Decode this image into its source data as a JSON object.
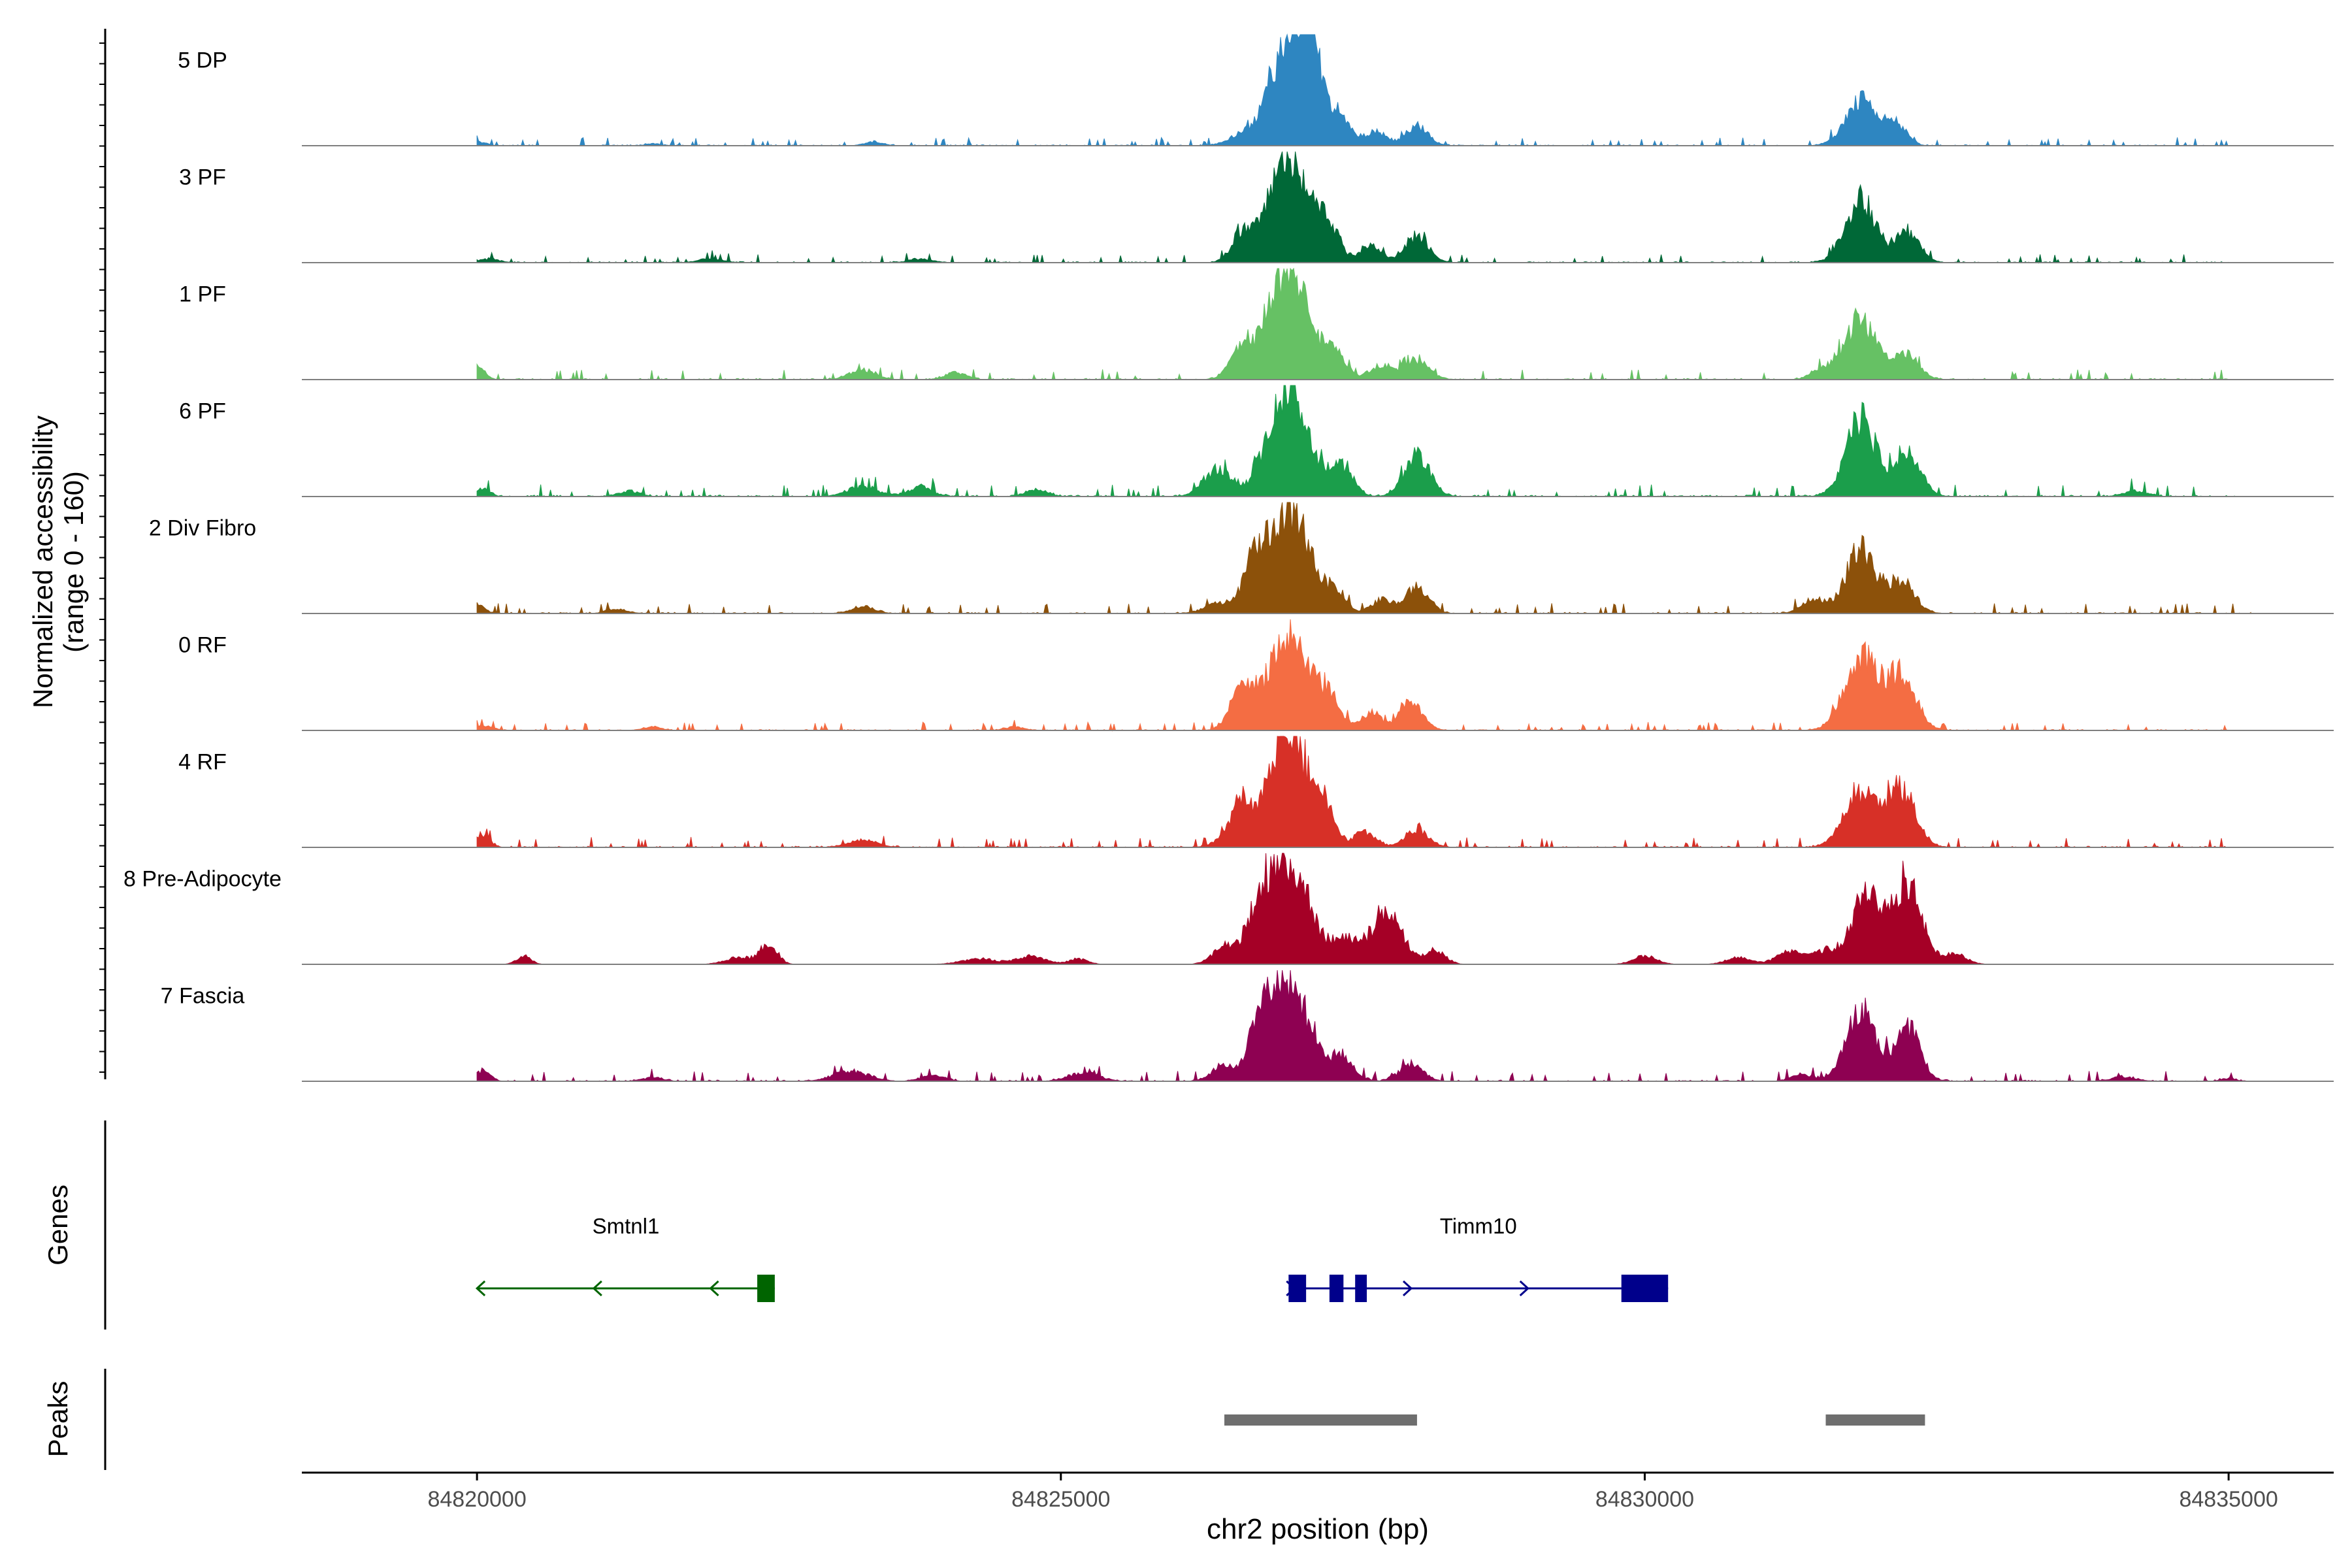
{
  "chart_data": {
    "type": "area",
    "x_axis": {
      "label": "chr2 position (bp)",
      "range": [
        84818500,
        84835900
      ],
      "ticks": [
        84820000,
        84825000,
        84830000,
        84835000
      ],
      "tick_labels": [
        "84820000",
        "84825000",
        "84830000",
        "84835000"
      ]
    },
    "coverage": {
      "ylabel_line1": "Normalized accessibility",
      "ylabel_line2": "(range 0 - 160)",
      "y_range": [
        0,
        160
      ],
      "tracks": [
        {
          "name": "5 DP",
          "color": "#2E86C1",
          "peaks": [
            [
              84820000,
              6,
              70
            ],
            [
              84821500,
              3,
              60
            ],
            [
              84823400,
              5,
              80
            ],
            [
              84826550,
              14,
              120
            ],
            [
              84826950,
              155,
              160
            ],
            [
              84827150,
              95,
              95
            ],
            [
              84827400,
              35,
              90
            ],
            [
              84827700,
              20,
              90
            ],
            [
              84828050,
              28,
              95
            ],
            [
              84831850,
              65,
              130
            ],
            [
              84832150,
              30,
              90
            ]
          ],
          "noise": 4,
          "span": [
            84820000,
            84835000
          ]
        },
        {
          "name": "3 PF",
          "color": "#006837",
          "peaks": [
            [
              84820100,
              5,
              90
            ],
            [
              84822000,
              6,
              100
            ],
            [
              84823800,
              5,
              100
            ],
            [
              84826550,
              38,
              90
            ],
            [
              84826950,
              160,
              170
            ],
            [
              84827300,
              45,
              90
            ],
            [
              84827650,
              25,
              90
            ],
            [
              84828050,
              38,
              100
            ],
            [
              84831850,
              90,
              130
            ],
            [
              84832250,
              45,
              100
            ]
          ],
          "noise": 4,
          "span": [
            84820000,
            84835000
          ]
        },
        {
          "name": "1 PF",
          "color": "#66C164",
          "peaks": [
            [
              84820000,
              20,
              60
            ],
            [
              84823300,
              14,
              110
            ],
            [
              84824100,
              10,
              90
            ],
            [
              84826550,
              45,
              100
            ],
            [
              84826950,
              160,
              170
            ],
            [
              84827350,
              38,
              90
            ],
            [
              84827750,
              20,
              110
            ],
            [
              84828050,
              28,
              100
            ],
            [
              84831500,
              15,
              80
            ],
            [
              84831850,
              85,
              140
            ],
            [
              84832250,
              35,
              100
            ]
          ],
          "noise": 5,
          "span": [
            84820000,
            84835000
          ]
        },
        {
          "name": "6 PF",
          "color": "#1B9E4B",
          "peaks": [
            [
              84820050,
              10,
              60
            ],
            [
              84821300,
              8,
              90
            ],
            [
              84823300,
              14,
              130
            ],
            [
              84823800,
              14,
              100
            ],
            [
              84824800,
              10,
              90
            ],
            [
              84826350,
              38,
              120
            ],
            [
              84826950,
              160,
              170
            ],
            [
              84827400,
              40,
              100
            ],
            [
              84828050,
              58,
              110
            ],
            [
              84831850,
              110,
              130
            ],
            [
              84832250,
              65,
              110
            ],
            [
              84834200,
              8,
              100
            ]
          ],
          "noise": 6,
          "span": [
            84820000,
            84835200
          ]
        },
        {
          "name": "2 Div Fibro",
          "color": "#8C510A",
          "peaks": [
            [
              84820000,
              14,
              60
            ],
            [
              84821200,
              6,
              90
            ],
            [
              84823300,
              10,
              100
            ],
            [
              84826350,
              14,
              120
            ],
            [
              84826650,
              58,
              90
            ],
            [
              84826950,
              155,
              170
            ],
            [
              84827350,
              30,
              90
            ],
            [
              84827750,
              20,
              90
            ],
            [
              84828050,
              38,
              100
            ],
            [
              84831450,
              20,
              100
            ],
            [
              84831850,
              90,
              130
            ],
            [
              84832200,
              45,
              110
            ]
          ],
          "noise": 5,
          "span": [
            84820000,
            84835200
          ]
        },
        {
          "name": "0 RF",
          "color": "#F46D43",
          "peaks": [
            [
              84820050,
              6,
              80
            ],
            [
              84821500,
              5,
              80
            ],
            [
              84824600,
              5,
              80
            ],
            [
              84826550,
              58,
              100
            ],
            [
              84826950,
              140,
              170
            ],
            [
              84827300,
              40,
              100
            ],
            [
              84827650,
              25,
              90
            ],
            [
              84828000,
              40,
              100
            ],
            [
              84831850,
              110,
              140
            ],
            [
              84832200,
              80,
              120
            ]
          ],
          "noise": 4,
          "span": [
            84820000,
            84835000
          ]
        },
        {
          "name": "4 RF",
          "color": "#D73027",
          "peaks": [
            [
              84820050,
              18,
              60
            ],
            [
              84823300,
              10,
              130
            ],
            [
              84826400,
              10,
              100
            ],
            [
              84826550,
              58,
              90
            ],
            [
              84826950,
              160,
              170
            ],
            [
              84827250,
              42,
              90
            ],
            [
              84827600,
              20,
              100
            ],
            [
              84828050,
              25,
              100
            ],
            [
              84831850,
              75,
              140
            ],
            [
              84832200,
              80,
              120
            ]
          ],
          "noise": 5,
          "span": [
            84820000,
            84835000
          ]
        },
        {
          "name": "8 Pre-Adipocyte",
          "color": "#A50026",
          "peaks": [
            [
              84820400,
              12,
              60
            ],
            [
              84822250,
              10,
              120
            ],
            [
              84822500,
              30,
              70
            ],
            [
              84824300,
              8,
              150
            ],
            [
              84824750,
              12,
              120
            ],
            [
              84825150,
              8,
              80
            ],
            [
              84826400,
              25,
              100
            ],
            [
              84826700,
              60,
              110
            ],
            [
              84826950,
              150,
              170
            ],
            [
              84827450,
              35,
              130
            ],
            [
              84827800,
              80,
              120
            ],
            [
              84828200,
              20,
              90
            ],
            [
              84830000,
              12,
              100
            ],
            [
              84830800,
              10,
              100
            ],
            [
              84831250,
              18,
              120
            ],
            [
              84831550,
              18,
              100
            ],
            [
              84831900,
              100,
              130
            ],
            [
              84832250,
              120,
              120
            ],
            [
              84832650,
              15,
              100
            ]
          ],
          "noise": 0,
          "span": [
            84820000,
            84835000
          ]
        },
        {
          "name": "7 Fascia",
          "color": "#8E0152",
          "peaks": [
            [
              84820050,
              15,
              60
            ],
            [
              84821500,
              5,
              90
            ],
            [
              84823200,
              14,
              150
            ],
            [
              84823900,
              8,
              100
            ],
            [
              84825200,
              12,
              130
            ],
            [
              84826400,
              20,
              110
            ],
            [
              84826700,
              60,
              90
            ],
            [
              84826950,
              150,
              170
            ],
            [
              84827400,
              30,
              110
            ],
            [
              84828000,
              25,
              100
            ],
            [
              84831350,
              10,
              90
            ],
            [
              84831850,
              100,
              130
            ],
            [
              84832250,
              75,
              110
            ],
            [
              84834100,
              6,
              110
            ],
            [
              84835000,
              4,
              60
            ]
          ],
          "noise": 5,
          "span": [
            84820000,
            84835200
          ]
        }
      ]
    },
    "genes": {
      "label": "Genes",
      "items": [
        {
          "name": "Smtnl1",
          "strand": "-",
          "color": "#006400",
          "start": 84820000,
          "end": 84822550,
          "exons": [
            [
              84822400,
              84822550
            ]
          ],
          "arrows": [
            84820000,
            84821000,
            84822000
          ]
        },
        {
          "name": "Timm10",
          "strand": "+",
          "color": "#00008B",
          "start": 84826950,
          "end": 84830200,
          "exons": [
            [
              84826950,
              84827100
            ],
            [
              84827300,
              84827420
            ],
            [
              84827520,
              84827620
            ],
            [
              84829800,
              84830200
            ]
          ],
          "arrows": [
            84827000,
            84828000,
            84829000
          ]
        }
      ]
    },
    "peaks_track": {
      "label": "Peaks",
      "color": "#6E6E6E",
      "regions": [
        [
          84826400,
          84828050
        ],
        [
          84831550,
          84832400
        ]
      ]
    }
  }
}
